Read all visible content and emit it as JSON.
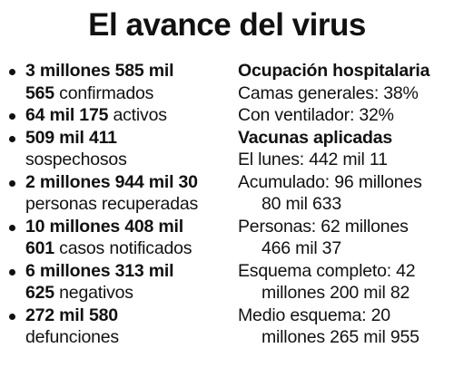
{
  "title": "El avance del virus",
  "left": [
    {
      "l1_bold": "3 millones 585 mil",
      "l2_bold": "565",
      "l2_text": " confirmados"
    },
    {
      "l1_bold": "64 mil 175",
      "l1_text": " activos"
    },
    {
      "l1_bold": "509 mil 411",
      "l2_text": "sospechosos"
    },
    {
      "l1_bold": "2 millones 944 mil 30",
      "l2_text": "personas recuperadas"
    },
    {
      "l1_bold": "10 millones 408 mil",
      "l2_bold": "601",
      "l2_text": " casos notificados"
    },
    {
      "l1_bold": "6 millones 313 mil",
      "l2_bold": "625",
      "l2_text": " negativos"
    },
    {
      "l1_bold": "272 mil 580",
      "l2_text": "defunciones"
    }
  ],
  "right": {
    "hospital_heading": "Ocupación hospitalaria",
    "camas": "Camas generales: 38%",
    "ventilador": "Con ventilador: 32%",
    "vacunas_heading": "Vacunas aplicadas",
    "lunes": "El lunes: 442 mil 11",
    "acumulado_1": "Acumulado: 96 millones",
    "acumulado_2": "80 mil 633",
    "personas_1": "Personas: 62 millones",
    "personas_2": "466 mil 37",
    "completo_1": "Esquema completo: 42",
    "completo_2": "millones 200 mil 82",
    "medio_1": "Medio esquema: 20",
    "medio_2": "millones 265 mil 955"
  }
}
